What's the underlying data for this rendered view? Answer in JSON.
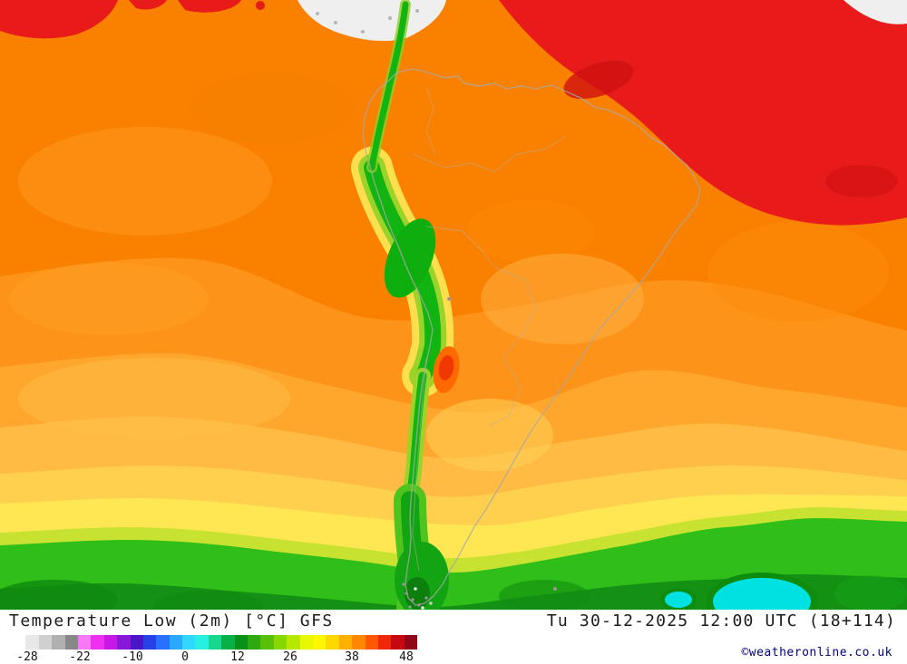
{
  "map": {
    "palette": {
      "deep_orange": "#fa8000",
      "orange": "#fd9318",
      "mid_orange": "#ffa62c",
      "light_orange": "#ffbb43",
      "amber": "#ffd04e",
      "yellow": "#ffe754",
      "yellow_green": "#c8e232",
      "green": "#30bf18",
      "dark_green": "#149114",
      "hot_red": "#e91a1a",
      "hot_red_dark": "#d01010",
      "andes_green": "#12b412",
      "andes_fringe": "#9cd32a",
      "cold_cyan": "#00e2e2",
      "cold_ring_green": "#0e8c0e",
      "hotspot_orange": "#ff6a00",
      "hotspot_red": "#f03800",
      "white_area": "#efefef",
      "coast_gray": "#a8a8a8"
    }
  },
  "footer": {
    "title": "Temperature Low (2m) [°C] GFS",
    "timestamp": "Tu 30-12-2025 12:00 UTC (18+114)",
    "copyright": "©weatheronline.co.uk",
    "legend": {
      "tick_labels": [
        "-28",
        "-22",
        "-10",
        "0",
        "12",
        "26",
        "38",
        "48"
      ],
      "stops": [
        "#ffffff",
        "#e8e8e8",
        "#d0d0d0",
        "#b0b0b0",
        "#888888",
        "#f878f8",
        "#f030f0",
        "#c818e8",
        "#8818d8",
        "#4818c8",
        "#2840e8",
        "#2870ff",
        "#28a8ff",
        "#30d8ff",
        "#28f0e0",
        "#18d890",
        "#08b048",
        "#089018",
        "#30a810",
        "#58c008",
        "#88d800",
        "#b8e800",
        "#e8f800",
        "#fff800",
        "#ffd800",
        "#ffb000",
        "#ff8800",
        "#ff5800",
        "#f02808",
        "#c80810",
        "#900818"
      ]
    }
  }
}
